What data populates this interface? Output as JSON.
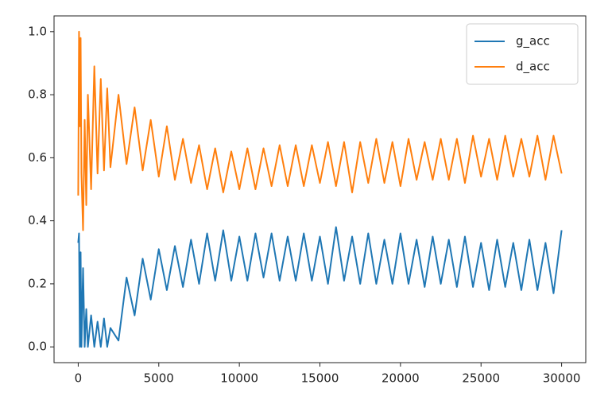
{
  "chart_data": {
    "type": "line",
    "x": [
      0,
      50,
      100,
      150,
      200,
      300,
      400,
      500,
      600,
      800,
      1000,
      1200,
      1400,
      1600,
      1800,
      2000,
      2500,
      3000,
      3500,
      4000,
      4500,
      5000,
      5500,
      6000,
      6500,
      7000,
      7500,
      8000,
      8500,
      9000,
      9500,
      10000,
      10500,
      11000,
      11500,
      12000,
      12500,
      13000,
      13500,
      14000,
      14500,
      15000,
      15500,
      16000,
      16500,
      17000,
      17500,
      18000,
      18500,
      19000,
      19500,
      20000,
      20500,
      21000,
      21500,
      22000,
      22500,
      23000,
      23500,
      24000,
      24500,
      25000,
      25500,
      26000,
      26500,
      27000,
      27500,
      28000,
      28500,
      29000,
      29500,
      30000
    ],
    "series": [
      {
        "name": "g_acc",
        "color": "#1f77b4",
        "values": [
          0.33,
          0.36,
          0.0,
          0.3,
          0.0,
          0.25,
          0.0,
          0.12,
          0.0,
          0.1,
          0.0,
          0.08,
          0.0,
          0.09,
          0.0,
          0.06,
          0.02,
          0.22,
          0.1,
          0.28,
          0.15,
          0.31,
          0.18,
          0.32,
          0.19,
          0.34,
          0.2,
          0.36,
          0.21,
          0.37,
          0.21,
          0.35,
          0.21,
          0.36,
          0.22,
          0.36,
          0.21,
          0.35,
          0.21,
          0.36,
          0.21,
          0.35,
          0.2,
          0.38,
          0.21,
          0.35,
          0.2,
          0.36,
          0.2,
          0.34,
          0.2,
          0.36,
          0.2,
          0.34,
          0.19,
          0.35,
          0.2,
          0.34,
          0.19,
          0.35,
          0.19,
          0.33,
          0.18,
          0.34,
          0.19,
          0.33,
          0.18,
          0.34,
          0.18,
          0.33,
          0.17,
          0.37
        ]
      },
      {
        "name": "d_acc",
        "color": "#ff7f0e",
        "values": [
          0.48,
          1.0,
          0.7,
          0.98,
          0.55,
          0.37,
          0.72,
          0.45,
          0.8,
          0.5,
          0.89,
          0.55,
          0.85,
          0.56,
          0.82,
          0.57,
          0.8,
          0.58,
          0.76,
          0.56,
          0.72,
          0.54,
          0.7,
          0.53,
          0.66,
          0.52,
          0.64,
          0.5,
          0.63,
          0.49,
          0.62,
          0.5,
          0.63,
          0.5,
          0.63,
          0.51,
          0.64,
          0.51,
          0.64,
          0.51,
          0.64,
          0.52,
          0.65,
          0.51,
          0.65,
          0.49,
          0.65,
          0.52,
          0.66,
          0.52,
          0.65,
          0.51,
          0.66,
          0.53,
          0.65,
          0.53,
          0.66,
          0.53,
          0.66,
          0.52,
          0.67,
          0.54,
          0.66,
          0.53,
          0.67,
          0.54,
          0.66,
          0.54,
          0.67,
          0.53,
          0.67,
          0.55
        ]
      }
    ],
    "xlim": [
      -1500,
      31500
    ],
    "ylim": [
      -0.05,
      1.05
    ],
    "xticks": [
      0,
      5000,
      10000,
      15000,
      20000,
      25000,
      30000
    ],
    "yticks": [
      {
        "value": 0,
        "label": "0.0"
      },
      {
        "value": 0.2,
        "label": "0.2"
      },
      {
        "value": 0.4,
        "label": "0.4"
      },
      {
        "value": 0.6,
        "label": "0.6"
      },
      {
        "value": 0.8,
        "label": "0.8"
      },
      {
        "value": 1,
        "label": "1.0"
      }
    ],
    "grid": false,
    "legend": "upper right"
  }
}
